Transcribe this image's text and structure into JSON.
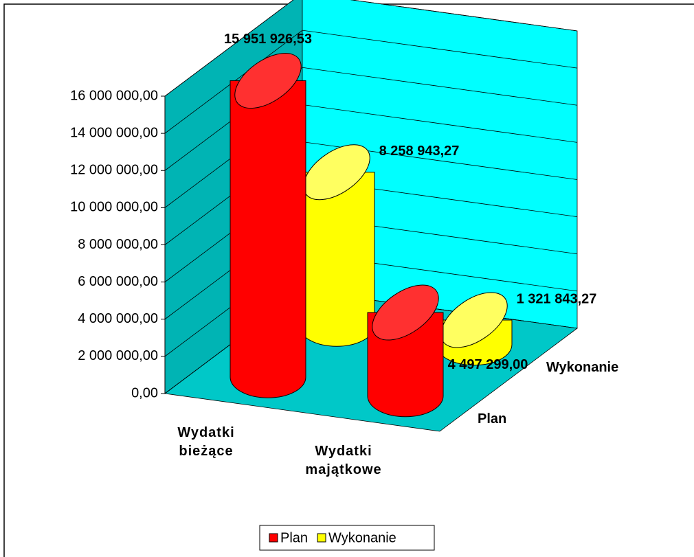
{
  "chart_data": {
    "type": "bar3d",
    "categories": [
      "Wydatki bieżące",
      "Wydatki majątkowe"
    ],
    "series": [
      {
        "name": "Plan",
        "color": "#ff0000",
        "values": [
          15951926.53,
          4497299.0
        ],
        "value_labels": [
          "15 951 926,53",
          "4 497 299,00"
        ]
      },
      {
        "name": "Wykonanie",
        "color": "#ffff00",
        "values": [
          8258943.27,
          1321843.27
        ],
        "value_labels": [
          "8 258 943,27",
          "1 321 843,27"
        ]
      }
    ],
    "ylim": [
      0,
      16000000
    ],
    "yticks": [
      {
        "value": 0,
        "label": "0,00"
      },
      {
        "value": 2000000,
        "label": "2 000 000,00"
      },
      {
        "value": 4000000,
        "label": "4 000 000,00"
      },
      {
        "value": 6000000,
        "label": "6 000 000,00"
      },
      {
        "value": 8000000,
        "label": "8 000 000,00"
      },
      {
        "value": 10000000,
        "label": "10 000 000,00"
      },
      {
        "value": 12000000,
        "label": "12 000 000,00"
      },
      {
        "value": 14000000,
        "label": "14 000 000,00"
      },
      {
        "value": 16000000,
        "label": "16 000 000,00"
      }
    ],
    "grid": true,
    "legend": "bottom"
  }
}
